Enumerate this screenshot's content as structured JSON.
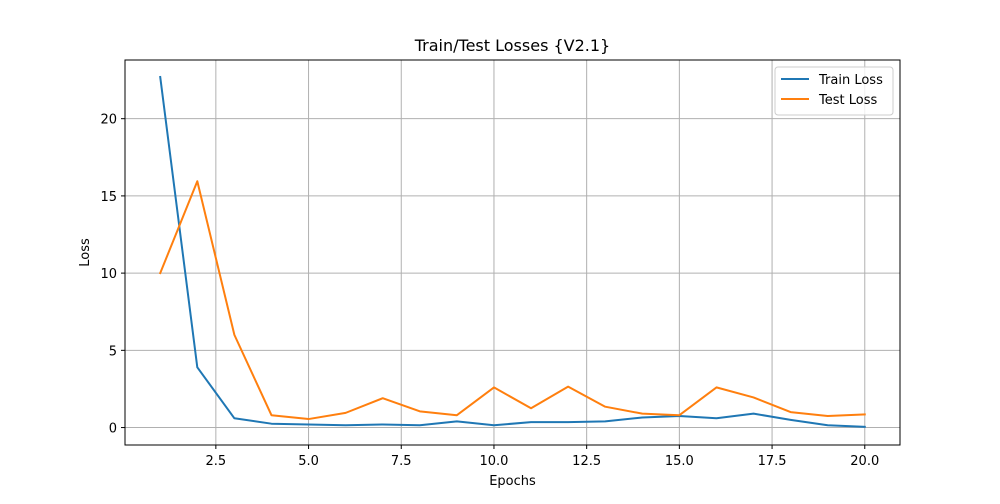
{
  "chart_data": {
    "type": "line",
    "title": "Train/Test Losses {V2.1}",
    "xlabel": "Epochs",
    "ylabel": "Loss",
    "xlim": [
      0.05,
      20.95
    ],
    "ylim": [
      -1.13,
      23.8
    ],
    "xticks": [
      2.5,
      5.0,
      7.5,
      10.0,
      12.5,
      15.0,
      17.5,
      20.0
    ],
    "xtick_labels": [
      "2.5",
      "5.0",
      "7.5",
      "10.0",
      "12.5",
      "15.0",
      "17.5",
      "20.0"
    ],
    "yticks": [
      0,
      5,
      10,
      15,
      20
    ],
    "ytick_labels": [
      "0",
      "5",
      "10",
      "15",
      "20"
    ],
    "grid": true,
    "legend_position": "top-right",
    "x": [
      1,
      2,
      3,
      4,
      5,
      6,
      7,
      8,
      9,
      10,
      11,
      12,
      13,
      14,
      15,
      16,
      17,
      18,
      19,
      20
    ],
    "series": [
      {
        "name": "Train Loss",
        "color": "#1f77b4",
        "values": [
          22.7,
          3.9,
          0.6,
          0.25,
          0.2,
          0.15,
          0.2,
          0.15,
          0.4,
          0.15,
          0.35,
          0.35,
          0.4,
          0.65,
          0.75,
          0.6,
          0.9,
          0.5,
          0.15,
          0.05
        ]
      },
      {
        "name": "Test Loss",
        "color": "#ff7f0e",
        "values": [
          10.0,
          15.95,
          6.0,
          0.8,
          0.55,
          0.95,
          1.9,
          1.05,
          0.8,
          2.6,
          1.25,
          2.65,
          1.35,
          0.9,
          0.8,
          2.6,
          1.95,
          1.0,
          0.75,
          0.85
        ]
      }
    ]
  }
}
